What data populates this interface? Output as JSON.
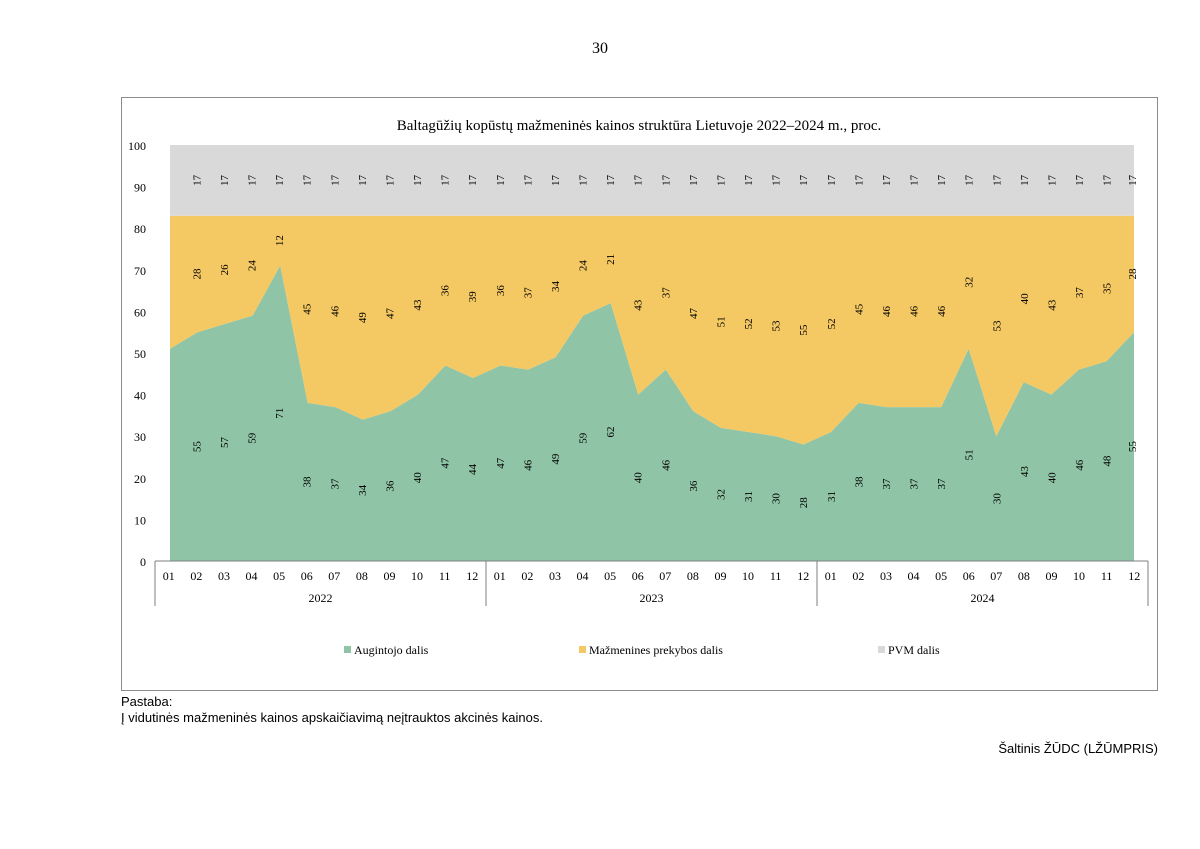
{
  "page": {
    "number": "30",
    "note_title": "Pastaba:",
    "note_text": "Į vidutinės mažmeninės kainos apskaičiavimą neįtrauktos akcinės kainos.",
    "source": "Šaltinis ŽŪDC (LŽŪMPRIS)"
  },
  "colors": {
    "grower": "#8fc4a6",
    "retail": "#f4c863",
    "vat": "#d9d9d9"
  },
  "chart_data": {
    "type": "area",
    "stacked": true,
    "title": "Baltagūžių kopūstų mažmeninės kainos struktūra Lietuvoje 2022–2024 m., proc.",
    "ylim": [
      0,
      100
    ],
    "yticks": [
      "0",
      "10",
      "20",
      "30",
      "40",
      "50",
      "60",
      "70",
      "80",
      "90",
      "100"
    ],
    "years": [
      "2022",
      "2023",
      "2024"
    ],
    "months": [
      "01",
      "02",
      "03",
      "04",
      "05",
      "06",
      "07",
      "08",
      "09",
      "10",
      "11",
      "12"
    ],
    "series": [
      {
        "name": "Augintojo dalis",
        "values": [
          51,
          55,
          57,
          59,
          71,
          38,
          37,
          34,
          36,
          40,
          47,
          44,
          47,
          46,
          49,
          59,
          62,
          40,
          46,
          36,
          32,
          31,
          30,
          28,
          31,
          38,
          37,
          37,
          37,
          51,
          30,
          43,
          40,
          46,
          48,
          55
        ],
        "labels": [
          "",
          "55",
          "57",
          "59",
          "71",
          "38",
          "37",
          "34",
          "36",
          "40",
          "47",
          "44",
          "47",
          "46",
          "49",
          "59",
          "62",
          "40",
          "46",
          "36",
          "32",
          "31",
          "30",
          "28",
          "31",
          "38",
          "37",
          "37",
          "37",
          "51",
          "30",
          "43",
          "40",
          "46",
          "48",
          "55"
        ]
      },
      {
        "name": "Mažmenines prekybos dalis",
        "values": [
          32,
          28,
          26,
          24,
          12,
          45,
          46,
          49,
          47,
          43,
          36,
          39,
          36,
          37,
          34,
          24,
          21,
          43,
          37,
          47,
          51,
          52,
          53,
          55,
          52,
          45,
          46,
          46,
          46,
          32,
          53,
          40,
          43,
          37,
          35,
          28
        ],
        "labels": [
          "",
          "28",
          "26",
          "24",
          "12",
          "45",
          "46",
          "49",
          "47",
          "43",
          "36",
          "39",
          "36",
          "37",
          "34",
          "24",
          "21",
          "43",
          "37",
          "47",
          "51",
          "52",
          "53",
          "55",
          "52",
          "45",
          "46",
          "46",
          "46",
          "32",
          "53",
          "40",
          "43",
          "37",
          "35",
          "28"
        ]
      },
      {
        "name": "PVM dalis",
        "values": [
          17,
          17,
          17,
          17,
          17,
          17,
          17,
          17,
          17,
          17,
          17,
          17,
          17,
          17,
          17,
          17,
          17,
          17,
          17,
          17,
          17,
          17,
          17,
          17,
          17,
          17,
          17,
          17,
          17,
          17,
          17,
          17,
          17,
          17,
          17,
          17
        ],
        "labels": [
          "",
          "17",
          "17",
          "17",
          "17",
          "17",
          "17",
          "17",
          "17",
          "17",
          "17",
          "17",
          "17",
          "17",
          "17",
          "17",
          "17",
          "17",
          "17",
          "17",
          "17",
          "17",
          "17",
          "17",
          "17",
          "17",
          "17",
          "17",
          "17",
          "17",
          "17",
          "17",
          "17",
          "17",
          "17",
          "17"
        ]
      }
    ],
    "legend": [
      "Augintojo dalis",
      "Mažmenines prekybos dalis",
      "PVM dalis"
    ]
  }
}
